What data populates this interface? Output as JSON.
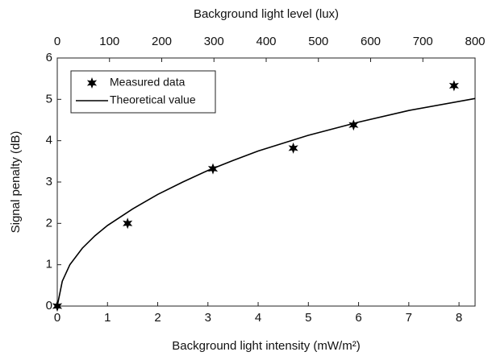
{
  "chart_data": {
    "type": "line",
    "xlabel": "Background light intensity (mW/m²)",
    "x2label": "Background light level (lux)",
    "ylabel": "Signal penalty (dB)",
    "xlim": [
      0,
      8.32
    ],
    "xticks": [
      0,
      1,
      2,
      3,
      4,
      5,
      6,
      7,
      8
    ],
    "x2lim": [
      0,
      800
    ],
    "x2ticks": [
      0,
      100,
      200,
      300,
      400,
      500,
      600,
      700,
      800
    ],
    "ylim": [
      0,
      6
    ],
    "yticks": [
      0,
      1,
      2,
      3,
      4,
      5,
      6
    ],
    "legend": "upper left",
    "series": [
      {
        "name": "Measured data",
        "type": "scatter",
        "color": "#000000",
        "x": [
          0,
          1.4,
          3.1,
          4.7,
          5.9,
          7.9
        ],
        "values": [
          0,
          2.0,
          3.32,
          3.82,
          4.38,
          5.33
        ]
      },
      {
        "name": "Theoretical value",
        "type": "line",
        "color": "#000000",
        "x": [
          0,
          0.1,
          0.25,
          0.5,
          0.75,
          1,
          1.5,
          2,
          2.5,
          3,
          3.5,
          4,
          5,
          6,
          7,
          8.32
        ],
        "values": [
          0,
          0.6,
          1.0,
          1.4,
          1.7,
          1.95,
          2.35,
          2.7,
          3.0,
          3.28,
          3.52,
          3.75,
          4.13,
          4.45,
          4.73,
          5.02
        ]
      }
    ]
  }
}
